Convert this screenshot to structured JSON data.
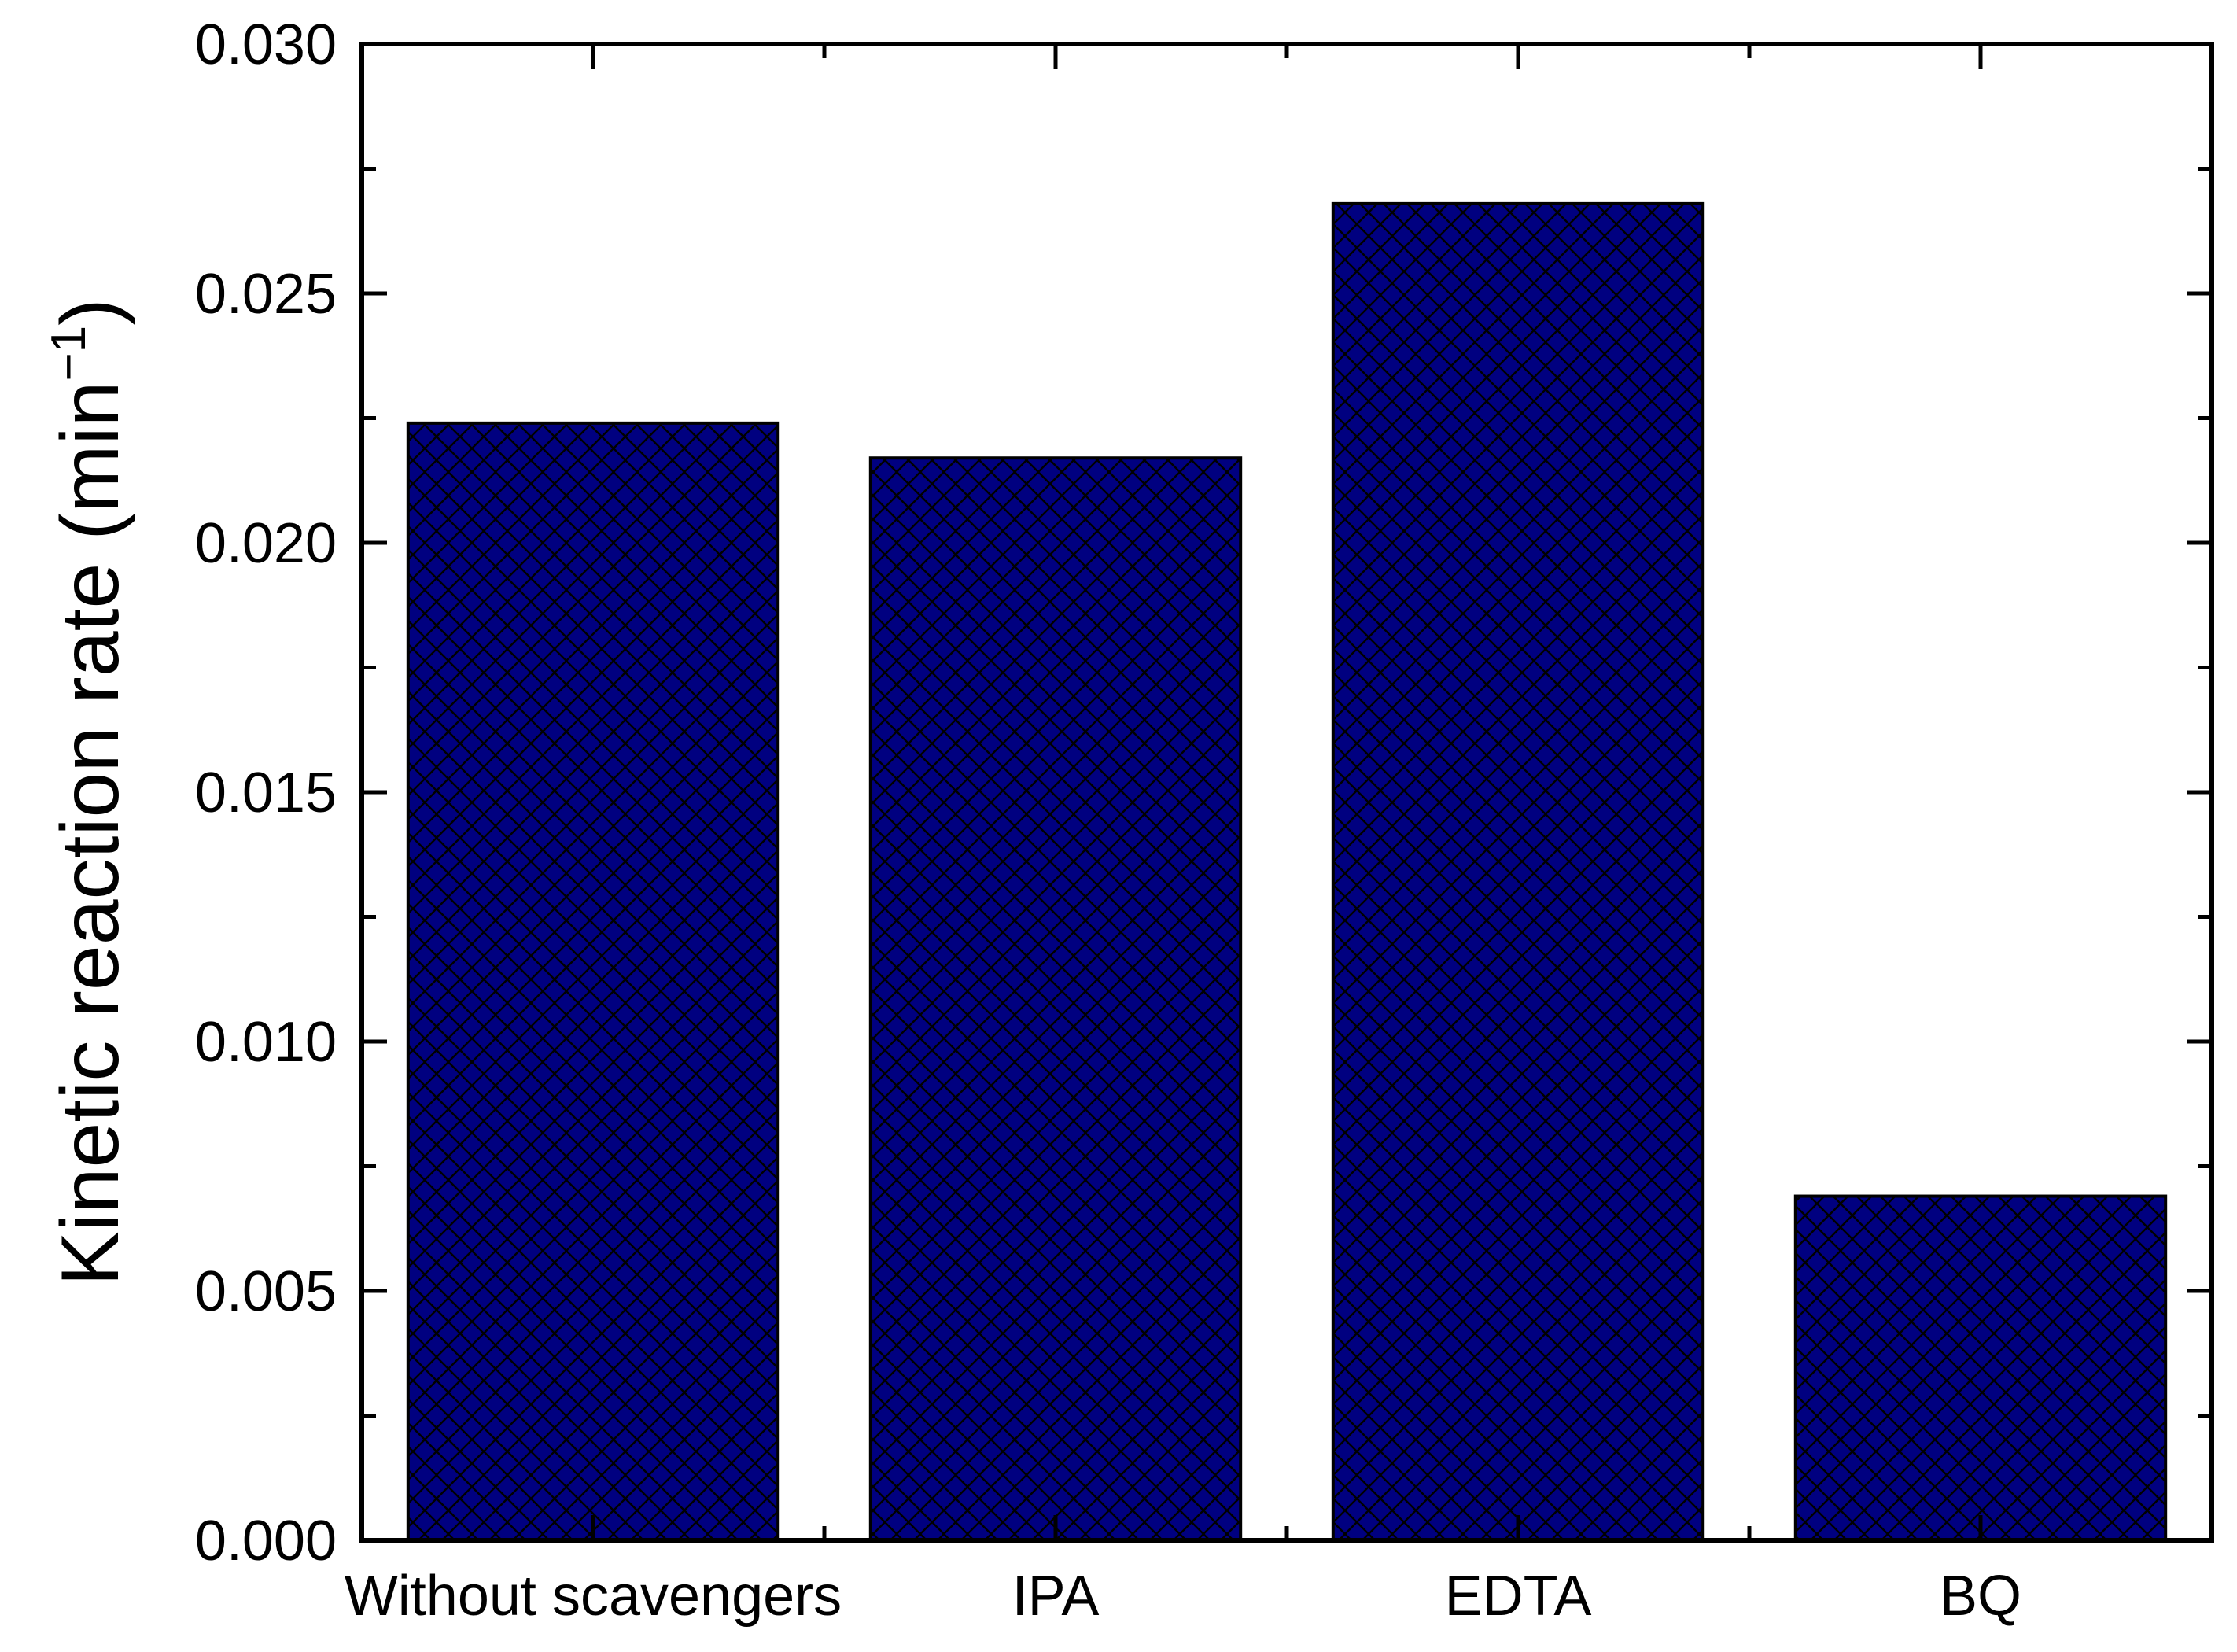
{
  "chart_data": {
    "type": "bar",
    "title": "",
    "xlabel": "",
    "ylabel": "Kinetic reaction rate (min",
    "ylabel_superscript": "−1",
    "ylabel_close": ")",
    "categories": [
      "Without scavengers",
      "IPA",
      "EDTA",
      "BQ"
    ],
    "values": [
      0.0224,
      0.0217,
      0.0268,
      0.0069
    ],
    "ylim": [
      0,
      0.03
    ],
    "yticks": [
      "0.000",
      "0.005",
      "0.010",
      "0.015",
      "0.020",
      "0.025",
      "0.030"
    ],
    "ytick_values": [
      0,
      0.005,
      0.01,
      0.015,
      0.02,
      0.025,
      0.03
    ],
    "y_minor_step": 0.0025,
    "grid": false,
    "legend": "none",
    "bar_color": "#000080",
    "bar_pattern": "crosshatch",
    "edge_color": "#000000"
  }
}
